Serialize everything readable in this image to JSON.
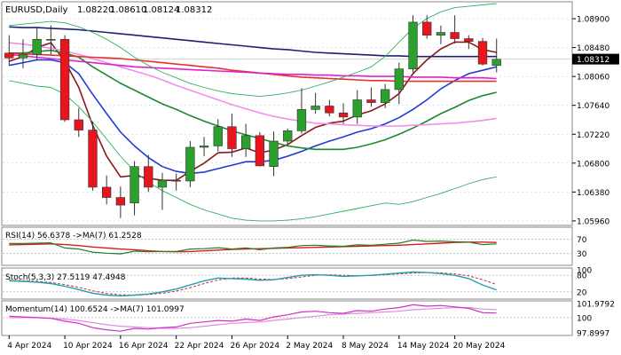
{
  "header": {
    "symbol": "EURUSD,Daily",
    "ohlc": [
      "1.08220",
      "1.08610",
      "1.08124",
      "1.08312"
    ]
  },
  "colors": {
    "bull": "#2ca02c",
    "bear": "#e8141e",
    "ema_fast": "#8b1a1a",
    "ema_blue": "#1f3bd6",
    "sma_green": "#1a8a2a",
    "sma_red": "#e83030",
    "sma_magenta": "#e020d0",
    "sma_pink": "#f090e8",
    "sma_navy": "#202070",
    "bb_band": "#30b060",
    "rsi_line": "#2a7a2a",
    "rsi_ma": "#d81c1c",
    "stoch_main": "#20a0b0",
    "stoch_signal": "#c83030",
    "mom_line": "#d030c0",
    "mom_ma": "#e08ce0",
    "grid": "#c8c8c8",
    "current_price_bg": "#000000"
  },
  "chart_data": {
    "type": "candlestick",
    "title": "EURUSD,Daily",
    "last_price": "1.08312",
    "y_ticks": [
      "1.08900",
      "1.08480",
      "1.08060",
      "1.07640",
      "1.07220",
      "1.06800",
      "1.06380",
      "1.05960"
    ],
    "ylim": [
      1.0592,
      1.0912
    ],
    "x_ticks": [
      "4 Apr 2024",
      "10 Apr 2024",
      "16 Apr 2024",
      "22 Apr 2024",
      "26 Apr 2024",
      "2 May 2024",
      "8 May 2024",
      "14 May 2024",
      "20 May 2024"
    ],
    "x_tick_index": [
      0,
      4,
      8,
      12,
      16,
      20,
      24,
      28,
      32
    ],
    "candles": [
      {
        "date": "2024-04-04",
        "o": 1.084,
        "h": 1.0866,
        "l": 1.0822,
        "c": 1.0833
      },
      {
        "date": "2024-04-05",
        "o": 1.0833,
        "h": 1.086,
        "l": 1.0818,
        "c": 1.0838
      },
      {
        "date": "2024-04-08",
        "o": 1.0838,
        "h": 1.0876,
        "l": 1.083,
        "c": 1.086
      },
      {
        "date": "2024-04-09",
        "o": 1.086,
        "h": 1.088,
        "l": 1.0838,
        "c": 1.086
      },
      {
        "date": "2024-04-10",
        "o": 1.086,
        "h": 1.0866,
        "l": 1.074,
        "c": 1.0743
      },
      {
        "date": "2024-04-11",
        "o": 1.0743,
        "h": 1.076,
        "l": 1.0718,
        "c": 1.0728
      },
      {
        "date": "2024-04-12",
        "o": 1.0728,
        "h": 1.074,
        "l": 1.064,
        "c": 1.0645
      },
      {
        "date": "2024-04-15",
        "o": 1.0645,
        "h": 1.0662,
        "l": 1.062,
        "c": 1.063
      },
      {
        "date": "2024-04-16",
        "o": 1.063,
        "h": 1.0646,
        "l": 1.06,
        "c": 1.0619
      },
      {
        "date": "2024-04-17",
        "o": 1.0622,
        "h": 1.0683,
        "l": 1.0604,
        "c": 1.0675
      },
      {
        "date": "2024-04-18",
        "o": 1.0675,
        "h": 1.0692,
        "l": 1.0638,
        "c": 1.0645
      },
      {
        "date": "2024-04-19",
        "o": 1.0645,
        "h": 1.0666,
        "l": 1.0612,
        "c": 1.0655
      },
      {
        "date": "2024-04-22",
        "o": 1.0655,
        "h": 1.0665,
        "l": 1.064,
        "c": 1.0654
      },
      {
        "date": "2024-04-23",
        "o": 1.0654,
        "h": 1.0712,
        "l": 1.0645,
        "c": 1.0703
      },
      {
        "date": "2024-04-24",
        "o": 1.0703,
        "h": 1.0718,
        "l": 1.069,
        "c": 1.0705
      },
      {
        "date": "2024-04-25",
        "o": 1.0705,
        "h": 1.0744,
        "l": 1.0697,
        "c": 1.0733
      },
      {
        "date": "2024-04-26",
        "o": 1.0733,
        "h": 1.0752,
        "l": 1.0689,
        "c": 1.0701
      },
      {
        "date": "2024-04-29",
        "o": 1.0701,
        "h": 1.0737,
        "l": 1.0689,
        "c": 1.072
      },
      {
        "date": "2024-04-30",
        "o": 1.072,
        "h": 1.0725,
        "l": 1.0675,
        "c": 1.0676
      },
      {
        "date": "2024-05-01",
        "o": 1.0675,
        "h": 1.0726,
        "l": 1.0661,
        "c": 1.0712
      },
      {
        "date": "2024-05-02",
        "o": 1.0712,
        "h": 1.073,
        "l": 1.0706,
        "c": 1.0727
      },
      {
        "date": "2024-05-03",
        "o": 1.0727,
        "h": 1.0789,
        "l": 1.0723,
        "c": 1.0758
      },
      {
        "date": "2024-05-06",
        "o": 1.0758,
        "h": 1.0782,
        "l": 1.0752,
        "c": 1.0763
      },
      {
        "date": "2024-05-07",
        "o": 1.0763,
        "h": 1.0772,
        "l": 1.0748,
        "c": 1.0753
      },
      {
        "date": "2024-05-08",
        "o": 1.0753,
        "h": 1.0767,
        "l": 1.0737,
        "c": 1.0747
      },
      {
        "date": "2024-05-09",
        "o": 1.0747,
        "h": 1.0786,
        "l": 1.0737,
        "c": 1.0772
      },
      {
        "date": "2024-05-10",
        "o": 1.0772,
        "h": 1.079,
        "l": 1.0762,
        "c": 1.0768
      },
      {
        "date": "2024-05-13",
        "o": 1.0768,
        "h": 1.0795,
        "l": 1.076,
        "c": 1.0787
      },
      {
        "date": "2024-05-14",
        "o": 1.0787,
        "h": 1.0826,
        "l": 1.0766,
        "c": 1.0817
      },
      {
        "date": "2024-05-15",
        "o": 1.0817,
        "h": 1.0895,
        "l": 1.0812,
        "c": 1.0885
      },
      {
        "date": "2024-05-16",
        "o": 1.0885,
        "h": 1.0895,
        "l": 1.0861,
        "c": 1.0866
      },
      {
        "date": "2024-05-17",
        "o": 1.0866,
        "h": 1.088,
        "l": 1.0853,
        "c": 1.087
      },
      {
        "date": "2024-05-20",
        "o": 1.087,
        "h": 1.0895,
        "l": 1.0854,
        "c": 1.0861
      },
      {
        "date": "2024-05-21",
        "o": 1.0861,
        "h": 1.0866,
        "l": 1.0846,
        "c": 1.0857
      },
      {
        "date": "2024-05-22",
        "o": 1.0857,
        "h": 1.0862,
        "l": 1.0822,
        "c": 1.0824
      },
      {
        "date": "2024-05-23",
        "o": 1.0822,
        "h": 1.0861,
        "l": 1.0812,
        "c": 1.0831
      }
    ],
    "overlays": [
      {
        "key": "ema_fast",
        "width": 1.6,
        "values": [
          1.0828,
          1.0835,
          1.0848,
          1.0855,
          1.0828,
          1.079,
          1.0735,
          1.069,
          1.066,
          1.0662,
          1.0658,
          1.0655,
          1.0655,
          1.0668,
          1.068,
          1.0695,
          1.0696,
          1.0702,
          1.0695,
          1.0699,
          1.0707,
          1.072,
          1.0732,
          1.0738,
          1.0741,
          1.075,
          1.0756,
          1.0766,
          1.0781,
          1.081,
          1.083,
          1.0846,
          1.0856,
          1.0856,
          1.0845,
          1.0841
        ]
      },
      {
        "key": "ema_blue",
        "width": 1.6,
        "values": [
          1.0822,
          1.0826,
          1.083,
          1.083,
          1.0826,
          1.081,
          1.078,
          1.0752,
          1.0725,
          1.0705,
          1.0688,
          1.0675,
          1.0668,
          1.0665,
          1.0667,
          1.0672,
          1.0677,
          1.0682,
          1.0682,
          1.0684,
          1.069,
          1.0697,
          1.0705,
          1.0712,
          1.0718,
          1.0725,
          1.073,
          1.0737,
          1.0746,
          1.0758,
          1.0772,
          1.0788,
          1.08,
          1.081,
          1.0815,
          1.082
        ]
      },
      {
        "key": "sma_green",
        "width": 1.6,
        "values": [
          1.084,
          1.084,
          1.0842,
          1.0844,
          1.084,
          1.0834,
          1.082,
          1.0808,
          1.0796,
          1.0786,
          1.0776,
          1.0766,
          1.0758,
          1.0749,
          1.0741,
          1.0734,
          1.0727,
          1.0721,
          1.0716,
          1.071,
          1.0705,
          1.0702,
          1.07,
          1.07,
          1.07,
          1.0703,
          1.0708,
          1.0714,
          1.0722,
          1.0731,
          1.0741,
          1.0752,
          1.0761,
          1.0771,
          1.0778,
          1.0783
        ]
      },
      {
        "key": "sma_pink",
        "width": 1.6,
        "values": [
          1.0855,
          1.0853,
          1.085,
          1.0847,
          1.0843,
          1.0838,
          1.0832,
          1.0826,
          1.082,
          1.0814,
          1.0808,
          1.0801,
          1.0793,
          1.0786,
          1.0779,
          1.0772,
          1.0765,
          1.0759,
          1.0753,
          1.0748,
          1.0744,
          1.0741,
          1.0738,
          1.0737,
          1.0736,
          1.0735,
          1.0734,
          1.0734,
          1.0734,
          1.0735,
          1.0736,
          1.0737,
          1.0738,
          1.074,
          1.0742,
          1.0745
        ]
      },
      {
        "key": "sma_red",
        "width": 1.6,
        "values": [
          1.084,
          1.0839,
          1.0838,
          1.0837,
          1.0836,
          1.0835,
          1.0834,
          1.0833,
          1.0832,
          1.083,
          1.0828,
          1.0826,
          1.0824,
          1.0822,
          1.082,
          1.0818,
          1.0815,
          1.0813,
          1.0811,
          1.0809,
          1.0807,
          1.0805,
          1.0804,
          1.0803,
          1.0802,
          1.0801,
          1.08,
          1.08,
          1.0799,
          1.0799,
          1.0799,
          1.0799,
          1.0799,
          1.0799,
          1.0799,
          1.0799
        ]
      },
      {
        "key": "sma_magenta",
        "width": 1.6,
        "values": [
          1.0838,
          1.0836,
          1.0834,
          1.0832,
          1.083,
          1.0828,
          1.0826,
          1.0824,
          1.0822,
          1.082,
          1.0819,
          1.0818,
          1.0817,
          1.0816,
          1.0815,
          1.0814,
          1.0813,
          1.0812,
          1.0811,
          1.081,
          1.0809,
          1.0809,
          1.0808,
          1.0808,
          1.0807,
          1.0807,
          1.0806,
          1.0806,
          1.0806,
          1.0805,
          1.0805,
          1.0805,
          1.0804,
          1.0804,
          1.0804,
          1.0803
        ]
      },
      {
        "key": "sma_navy",
        "width": 1.6,
        "values": [
          1.0878,
          1.0877,
          1.0877,
          1.0876,
          1.0875,
          1.0874,
          1.0872,
          1.087,
          1.0868,
          1.0866,
          1.0864,
          1.0862,
          1.086,
          1.0858,
          1.0856,
          1.0854,
          1.0852,
          1.085,
          1.0848,
          1.0846,
          1.0845,
          1.0843,
          1.0841,
          1.084,
          1.0839,
          1.0838,
          1.0837,
          1.0836,
          1.0836,
          1.0835,
          1.0835,
          1.0835,
          1.0835,
          1.0835,
          1.0835,
          1.0835
        ]
      },
      {
        "key": "bb_band",
        "width": 0.9,
        "values": [
          1.088,
          1.0882,
          1.0884,
          1.0886,
          1.0884,
          1.0878,
          1.087,
          1.086,
          1.0848,
          1.0834,
          1.0822,
          1.0812,
          1.0804,
          1.0796,
          1.079,
          1.0785,
          1.0781,
          1.0779,
          1.0777,
          1.0779,
          1.0782,
          1.0786,
          1.0792,
          1.0798,
          1.0805,
          1.0812,
          1.082,
          1.0835,
          1.0856,
          1.0876,
          1.089,
          1.09,
          1.0906,
          1.0908,
          1.091,
          1.0912
        ]
      },
      {
        "key": "bb_band",
        "width": 0.9,
        "values": [
          1.08,
          1.0796,
          1.0792,
          1.079,
          1.078,
          1.0762,
          1.074,
          1.0715,
          1.069,
          1.0668,
          1.0652,
          1.064,
          1.063,
          1.062,
          1.0612,
          1.0606,
          1.06,
          1.0597,
          1.0596,
          1.0596,
          1.0597,
          1.0599,
          1.0602,
          1.0606,
          1.061,
          1.0614,
          1.0618,
          1.0622,
          1.062,
          1.0624,
          1.063,
          1.0636,
          1.0643,
          1.065,
          1.0656,
          1.066
        ]
      }
    ],
    "rsi": {
      "label": "RSI(14) 56.6378 ->MA(7) 61.2528",
      "ticks": [
        "70",
        "30"
      ],
      "levels": [
        70,
        30
      ],
      "ylim": [
        0,
        100
      ],
      "rsi": [
        58,
        58,
        59,
        60,
        45,
        42,
        33,
        30,
        28,
        36,
        34,
        35,
        35,
        42,
        43,
        46,
        42,
        45,
        40,
        45,
        47,
        52,
        53,
        51,
        50,
        54,
        53,
        56,
        59,
        68,
        64,
        65,
        63,
        62,
        55,
        57
      ],
      "ma": [
        54,
        55,
        56,
        57,
        55,
        52,
        48,
        45,
        42,
        40,
        37,
        35,
        34,
        35,
        37,
        39,
        41,
        42,
        43,
        44,
        45,
        46,
        47,
        48,
        49,
        50,
        51,
        52,
        53,
        55,
        57,
        59,
        61,
        62,
        62,
        61
      ]
    },
    "stoch": {
      "label": "Stoch(5,3,3) 27.5119 47.4948",
      "ticks": [
        "100",
        "80",
        "20"
      ],
      "levels": [
        80,
        20
      ],
      "ylim": [
        0,
        100
      ],
      "main": [
        60,
        58,
        55,
        50,
        40,
        28,
        15,
        8,
        5,
        8,
        12,
        20,
        30,
        45,
        60,
        70,
        68,
        66,
        62,
        64,
        72,
        80,
        82,
        80,
        76,
        78,
        80,
        84,
        88,
        92,
        90,
        86,
        80,
        68,
        45,
        27
      ],
      "signal": [
        62,
        60,
        58,
        54,
        46,
        36,
        24,
        14,
        9,
        8,
        10,
        15,
        23,
        35,
        50,
        63,
        70,
        70,
        66,
        65,
        68,
        74,
        80,
        82,
        80,
        79,
        79,
        82,
        85,
        88,
        90,
        89,
        85,
        78,
        64,
        47
      ]
    },
    "momentum": {
      "label": "Momentum(14) 100.6524 ->MA(7) 101.0997",
      "ticks": [
        "101.9792",
        "100",
        "97.8997"
      ],
      "level": 100,
      "ylim": [
        97.75,
        102.1
      ],
      "mom": [
        100.2,
        100.1,
        100.0,
        99.9,
        99.5,
        99.2,
        98.6,
        98.3,
        98.1,
        98.5,
        98.4,
        98.6,
        98.7,
        99.2,
        99.4,
        99.6,
        99.5,
        99.8,
        99.6,
        100.1,
        100.4,
        100.8,
        100.9,
        100.7,
        100.6,
        101.0,
        100.9,
        101.2,
        101.4,
        101.8,
        101.6,
        101.7,
        101.5,
        101.3,
        100.7,
        100.65
      ],
      "ma": [
        100.0,
        100.0,
        100.0,
        99.9,
        99.8,
        99.6,
        99.3,
        99.0,
        98.8,
        98.7,
        98.6,
        98.5,
        98.5,
        98.6,
        98.8,
        99.0,
        99.2,
        99.3,
        99.4,
        99.6,
        99.8,
        100.0,
        100.2,
        100.4,
        100.5,
        100.6,
        100.7,
        100.8,
        100.9,
        101.1,
        101.2,
        101.3,
        101.4,
        101.4,
        101.2,
        101.1
      ]
    }
  }
}
